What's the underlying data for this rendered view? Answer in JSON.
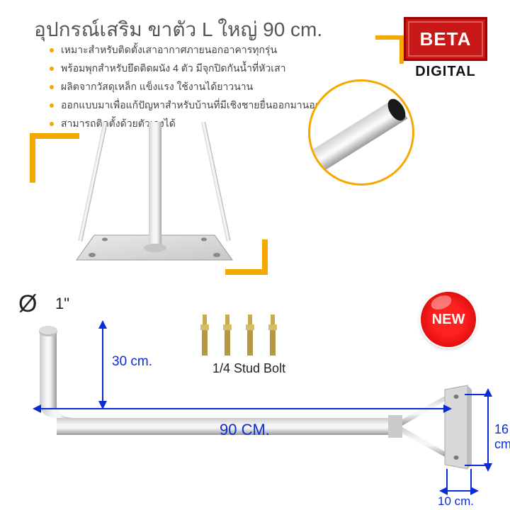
{
  "title": "อุปกรณ์เสริม ขาตัว L ใหญ่ 90 cm.",
  "bullets": [
    "เหมาะสำหรับติดตั้งเสาอากาศภายนอกอาคารทุกรุ่น",
    "พร้อมพุกสำหรับยึดติดผนัง 4 ตัว มีจุกปิดกันน้ำที่หัวเสา",
    "ผลิตจากวัสดุเหล็ก แข็งแรง ใช้งานได้ยาวนาน",
    "ออกแบบมาเพื่อแก้ปัญหาสำหรับบ้านที่มีเชิงชายยื่นออกมานอกตัวบ้าน",
    "สามารถติดตั้งด้วยตัวเองได้"
  ],
  "logo": {
    "brand": "BETA",
    "sub": "DIGITAL"
  },
  "newBadge": "NEW",
  "bolts": {
    "label": "1/4 Stud Bolt",
    "count": 4
  },
  "diameter": {
    "symbol": "Ø",
    "value": "1\""
  },
  "dimensions": {
    "vertical": "30 cm.",
    "horizontal": "90 CM.",
    "plateH": "16 cm.",
    "plateW": "10 cm."
  },
  "colors": {
    "accent": "#f7a800",
    "dimLine": "#0b2bd8",
    "brandRed": "#c91818",
    "badgeRed": "#ff2020",
    "metal1": "#e8e8e8",
    "metal2": "#bababa",
    "metal3": "#9a9a9a"
  }
}
